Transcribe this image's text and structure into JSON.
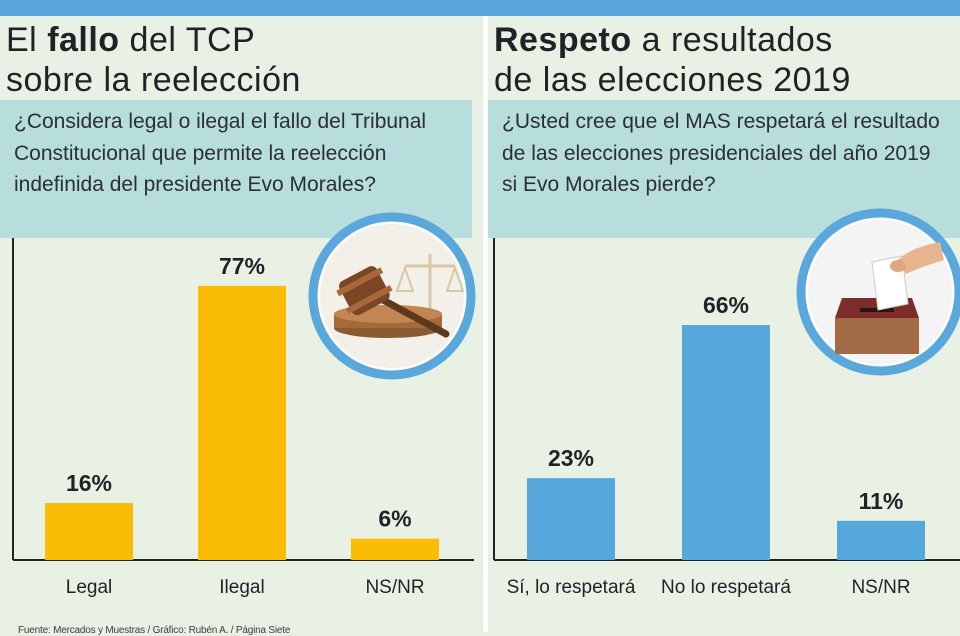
{
  "left": {
    "title_bold": "fallo",
    "title_pre": "El ",
    "title_post": " del TCP",
    "title_line2": "sobre la reelección",
    "question": "¿Considera legal o ilegal el fallo del Tribunal Constitucional que permite la reelección indefinida del presidente Evo Morales?",
    "icon": "gavel-icon",
    "source": "Fuente: Mercados y Muestras / Gráfico: Rubén A. / Página Siete"
  },
  "right": {
    "title_bold": "Respeto",
    "title_post": " a resultados",
    "title_line2": "de las elecciones 2019",
    "question": "¿Usted cree que el MAS respetará el resultado de las elecciones presidenciales del año 2019 si Evo Morales pierde?",
    "icon": "ballot-box-icon"
  },
  "colors": {
    "left_bars": "#fbbc05",
    "right_bars": "#56a7dc",
    "accent": "#5aa7dc",
    "question_bg": "#b7dedc"
  },
  "chart_data": [
    {
      "type": "bar",
      "categories": [
        "Legal",
        "Ilegal",
        "NS/NR"
      ],
      "values": [
        16,
        77,
        6
      ],
      "value_labels": [
        "16%",
        "77%",
        "6%"
      ],
      "title": "El fallo del TCP sobre la reelección",
      "ylim": [
        0,
        100
      ]
    },
    {
      "type": "bar",
      "categories": [
        "Sí, lo respetará",
        "No lo respetará",
        "NS/NR"
      ],
      "values": [
        23,
        66,
        11
      ],
      "value_labels": [
        "23%",
        "66%",
        "11%"
      ],
      "title": "Respeto a resultados de las elecciones 2019",
      "ylim": [
        0,
        100
      ]
    }
  ]
}
